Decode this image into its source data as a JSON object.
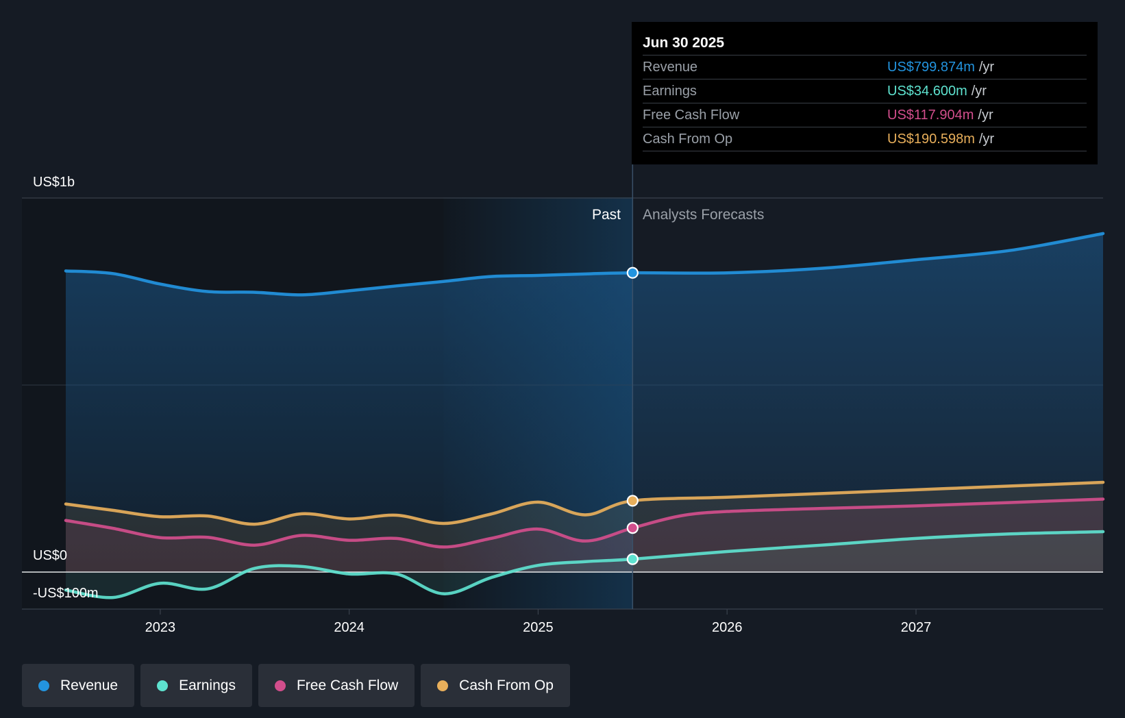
{
  "chart_data": {
    "type": "area",
    "y_axis_labels": [
      "US$1b",
      "US$0",
      "-US$100m"
    ],
    "ylim": [
      -100,
      1000
    ],
    "x_tick_labels": [
      "2023",
      "2024",
      "2025",
      "2026",
      "2027"
    ],
    "past_label": "Past",
    "forecast_label": "Analysts Forecasts",
    "divider_date": "2025-06-30",
    "series": [
      {
        "name": "Revenue",
        "color": "#2394df",
        "x": [
          2022.5,
          2022.75,
          2023.0,
          2023.25,
          2023.5,
          2023.75,
          2024.0,
          2024.25,
          2024.5,
          2024.75,
          2025.0,
          2025.25,
          2025.5,
          2026.0,
          2026.5,
          2027.0,
          2027.5,
          2027.99
        ],
        "values": [
          805,
          798,
          770,
          750,
          748,
          741,
          752,
          765,
          777,
          790,
          793,
          797,
          800,
          800,
          812,
          835,
          860,
          905
        ]
      },
      {
        "name": "Earnings",
        "color": "#5ee2cf",
        "x": [
          2022.5,
          2022.75,
          2023.0,
          2023.25,
          2023.5,
          2023.75,
          2024.0,
          2024.25,
          2024.5,
          2024.75,
          2025.0,
          2025.25,
          2025.5,
          2026.0,
          2026.5,
          2027.0,
          2027.5,
          2027.99
        ],
        "values": [
          -48,
          -68,
          -30,
          -45,
          10,
          15,
          -5,
          -5,
          -58,
          -15,
          18,
          28,
          34.6,
          55,
          72,
          90,
          102,
          108
        ]
      },
      {
        "name": "Free Cash Flow",
        "color": "#d24e8c",
        "x": [
          2022.5,
          2022.75,
          2023.0,
          2023.25,
          2023.5,
          2023.75,
          2024.0,
          2024.25,
          2024.5,
          2024.75,
          2025.0,
          2025.25,
          2025.5,
          2025.75,
          2026.0,
          2026.5,
          2027.0,
          2027.5,
          2027.99
        ],
        "values": [
          138,
          117,
          92,
          93,
          72,
          98,
          85,
          90,
          67,
          90,
          115,
          83,
          117.9,
          150,
          162,
          170,
          177,
          186,
          195
        ]
      },
      {
        "name": "Cash From Op",
        "color": "#e8af5b",
        "x": [
          2022.5,
          2022.75,
          2023.0,
          2023.25,
          2023.5,
          2023.75,
          2024.0,
          2024.25,
          2024.5,
          2024.75,
          2025.0,
          2025.25,
          2025.5,
          2026.0,
          2026.5,
          2027.0,
          2027.5,
          2027.99
        ],
        "values": [
          182,
          165,
          148,
          150,
          128,
          156,
          142,
          152,
          130,
          155,
          187,
          153,
          190.6,
          200,
          210,
          220,
          230,
          240
        ]
      }
    ]
  },
  "tooltip": {
    "date": "Jun 30 2025",
    "rows": [
      {
        "label": "Revenue",
        "value": "US$799.874m",
        "unit": "/yr",
        "color": "#2394df"
      },
      {
        "label": "Earnings",
        "value": "US$34.600m",
        "unit": "/yr",
        "color": "#5ee2cf"
      },
      {
        "label": "Free Cash Flow",
        "value": "US$117.904m",
        "unit": "/yr",
        "color": "#d24e8c"
      },
      {
        "label": "Cash From Op",
        "value": "US$190.598m",
        "unit": "/yr",
        "color": "#e8af5b"
      }
    ]
  },
  "legend": [
    {
      "label": "Revenue",
      "color": "#2394df"
    },
    {
      "label": "Earnings",
      "color": "#5ee2cf"
    },
    {
      "label": "Free Cash Flow",
      "color": "#d24e8c"
    },
    {
      "label": "Cash From Op",
      "color": "#e8af5b"
    }
  ]
}
